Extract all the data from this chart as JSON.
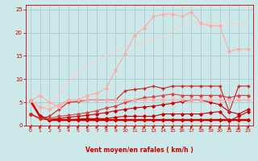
{
  "x": [
    0,
    1,
    2,
    3,
    4,
    5,
    6,
    7,
    8,
    9,
    10,
    11,
    12,
    13,
    14,
    15,
    16,
    17,
    18,
    19,
    20,
    21,
    22,
    23
  ],
  "bg_color": "#cce8e8",
  "grid_color": "#aacccc",
  "xlabel": "Vent moyen/en rafales ( km/h )",
  "xlabel_color": "#cc0000",
  "tick_color": "#cc0000",
  "arrow_color": "#cc2200",
  "lines": [
    {
      "y": [
        5.3,
        2.0,
        1.2,
        1.2,
        1.2,
        1.2,
        1.2,
        1.2,
        1.2,
        1.2,
        1.2,
        1.2,
        1.2,
        1.2,
        1.2,
        1.2,
        1.2,
        1.2,
        1.2,
        1.2,
        1.2,
        1.2,
        1.2,
        1.2
      ],
      "color": "#cc0000",
      "lw": 1.8,
      "marker": "D",
      "ms": 2.0
    },
    {
      "y": [
        2.5,
        1.5,
        1.2,
        1.2,
        1.2,
        1.4,
        1.5,
        1.5,
        1.5,
        1.8,
        2.0,
        2.0,
        2.0,
        2.0,
        2.5,
        2.5,
        2.5,
        2.5,
        2.5,
        2.8,
        3.0,
        1.0,
        2.0,
        3.0
      ],
      "color": "#cc0000",
      "lw": 0.8,
      "marker": "D",
      "ms": 1.8
    },
    {
      "y": [
        2.5,
        1.5,
        1.3,
        1.5,
        1.8,
        2.0,
        2.2,
        2.5,
        2.8,
        3.2,
        3.5,
        3.8,
        4.0,
        4.2,
        4.5,
        4.8,
        5.2,
        5.5,
        5.5,
        5.0,
        4.5,
        3.0,
        2.5,
        3.5
      ],
      "color": "#cc0000",
      "lw": 0.8,
      "marker": "D",
      "ms": 1.8
    },
    {
      "y": [
        2.5,
        1.5,
        1.5,
        2.0,
        2.2,
        2.5,
        2.8,
        3.2,
        3.8,
        4.2,
        5.0,
        5.5,
        6.0,
        6.2,
        6.5,
        6.8,
        6.5,
        6.5,
        6.5,
        6.5,
        6.5,
        6.0,
        6.5,
        6.5
      ],
      "color": "#dd4444",
      "lw": 0.8,
      "marker": "D",
      "ms": 1.8
    },
    {
      "y": [
        2.5,
        1.5,
        2.0,
        3.5,
        5.0,
        5.2,
        5.5,
        5.5,
        5.5,
        5.5,
        7.5,
        7.8,
        8.0,
        8.5,
        8.0,
        8.5,
        8.5,
        8.5,
        8.5,
        8.5,
        8.5,
        3.0,
        8.5,
        8.5
      ],
      "color": "#cc2222",
      "lw": 0.8,
      "marker": "+",
      "ms": 3.5
    },
    {
      "y": [
        5.3,
        6.5,
        5.0,
        4.0,
        5.5,
        5.5,
        5.5,
        5.5,
        5.5,
        5.5,
        5.5,
        5.5,
        5.5,
        5.5,
        5.5,
        5.5,
        5.5,
        5.5,
        5.5,
        5.5,
        5.5,
        5.5,
        5.5,
        5.5
      ],
      "color": "#ffaaaa",
      "lw": 0.8,
      "marker": "D",
      "ms": 1.8
    },
    {
      "y": [
        5.3,
        4.0,
        3.5,
        4.5,
        5.5,
        5.5,
        6.5,
        7.0,
        8.0,
        12.0,
        15.5,
        19.5,
        21.0,
        23.5,
        24.0,
        24.0,
        23.5,
        24.5,
        22.0,
        21.5,
        21.5,
        16.0,
        16.5,
        16.5
      ],
      "color": "#ffaaaa",
      "lw": 0.8,
      "marker": "D",
      "ms": 1.8
    },
    {
      "y": [
        5.3,
        3.5,
        4.5,
        6.5,
        9.5,
        11.0,
        13.0,
        14.0,
        15.0,
        16.0,
        17.0,
        17.5,
        18.0,
        18.5,
        19.0,
        20.5,
        21.5,
        22.5,
        22.0,
        22.0,
        22.0,
        22.0,
        22.0,
        22.0
      ],
      "color": "#ffcccc",
      "lw": 0.8,
      "marker": null,
      "ms": 0
    }
  ],
  "ylim": [
    0,
    26
  ],
  "xlim": [
    -0.5,
    23.5
  ],
  "yticks": [
    0,
    5,
    10,
    15,
    20,
    25
  ],
  "xticks": [
    0,
    1,
    2,
    3,
    4,
    5,
    6,
    7,
    8,
    9,
    10,
    11,
    12,
    13,
    14,
    15,
    16,
    17,
    18,
    19,
    20,
    21,
    22,
    23
  ],
  "arrow_angles_deg": [
    225,
    225,
    225,
    225,
    225,
    225,
    225,
    225,
    225,
    225,
    225,
    225,
    225,
    225,
    225,
    225,
    225,
    225,
    225,
    225,
    225,
    270,
    270,
    225
  ]
}
